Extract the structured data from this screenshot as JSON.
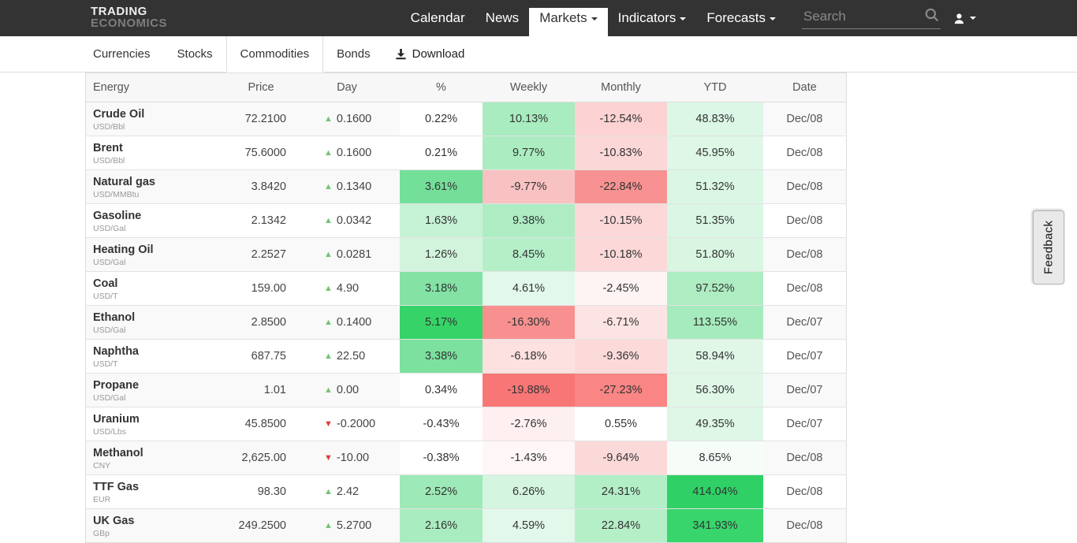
{
  "nav": {
    "brand_line1": "TRADING",
    "brand_line2": "ECONOMICS",
    "items": [
      {
        "label": "Calendar",
        "caret": false,
        "active": false
      },
      {
        "label": "News",
        "caret": false,
        "active": false
      },
      {
        "label": "Markets",
        "caret": true,
        "active": true
      },
      {
        "label": "Indicators",
        "caret": true,
        "active": false
      },
      {
        "label": "Forecasts",
        "caret": true,
        "active": false
      }
    ],
    "search_placeholder": "Search"
  },
  "subnav": {
    "tabs": [
      {
        "label": "Currencies",
        "active": false
      },
      {
        "label": "Stocks",
        "active": false
      },
      {
        "label": "Commodities",
        "active": true
      },
      {
        "label": "Bonds",
        "active": false
      }
    ],
    "download_label": "Download"
  },
  "feedback_label": "Feedback",
  "colors": {
    "navbar_bg": "#333333",
    "up_triangle": "#72c472",
    "down_triangle": "#e03c3c",
    "heat_green_max": "#33d466",
    "heat_red_max": "#f87272"
  },
  "table": {
    "columns": [
      "Energy",
      "Price",
      "Day",
      "%",
      "Weekly",
      "Monthly",
      "YTD",
      "Date"
    ],
    "rows": [
      {
        "name": "Crude Oil",
        "unit": "USD/Bbl",
        "price": "72.2100",
        "day_dir": "up",
        "day_change": "0.1600",
        "pct": {
          "v": "0.22%",
          "bg": "#ffffff"
        },
        "weekly": {
          "v": "10.13%",
          "bg": "#a8ecbf"
        },
        "monthly": {
          "v": "-12.54%",
          "bg": "#fcd2d2"
        },
        "ytd": {
          "v": "48.83%",
          "bg": "#dcf7e6"
        },
        "date": "Dec/08"
      },
      {
        "name": "Brent",
        "unit": "USD/Bbl",
        "price": "75.6000",
        "day_dir": "up",
        "day_change": "0.1600",
        "pct": {
          "v": "0.21%",
          "bg": "#ffffff"
        },
        "weekly": {
          "v": "9.77%",
          "bg": "#abedc1"
        },
        "monthly": {
          "v": "-10.83%",
          "bg": "#fcd7d7"
        },
        "ytd": {
          "v": "45.95%",
          "bg": "#def7e7"
        },
        "date": "Dec/08"
      },
      {
        "name": "Natural gas",
        "unit": "USD/MMBtu",
        "price": "3.8420",
        "day_dir": "up",
        "day_change": "0.1340",
        "pct": {
          "v": "3.61%",
          "bg": "#74df99"
        },
        "weekly": {
          "v": "-9.77%",
          "bg": "#f9c2c2"
        },
        "monthly": {
          "v": "-22.84%",
          "bg": "#f89292"
        },
        "ytd": {
          "v": "51.32%",
          "bg": "#daf6e4"
        },
        "date": "Dec/08"
      },
      {
        "name": "Gasoline",
        "unit": "USD/Gal",
        "price": "2.1342",
        "day_dir": "up",
        "day_change": "0.0342",
        "pct": {
          "v": "1.63%",
          "bg": "#c6f2d5"
        },
        "weekly": {
          "v": "9.38%",
          "bg": "#aeedc3"
        },
        "monthly": {
          "v": "-10.15%",
          "bg": "#fcd8d8"
        },
        "ytd": {
          "v": "51.35%",
          "bg": "#daf6e4"
        },
        "date": "Dec/08"
      },
      {
        "name": "Heating Oil",
        "unit": "USD/Gal",
        "price": "2.2527",
        "day_dir": "up",
        "day_change": "0.0281",
        "pct": {
          "v": "1.26%",
          "bg": "#d2f4dd"
        },
        "weekly": {
          "v": "8.45%",
          "bg": "#b5efc8"
        },
        "monthly": {
          "v": "-10.18%",
          "bg": "#fcd8d8"
        },
        "ytd": {
          "v": "51.80%",
          "bg": "#d9f6e3"
        },
        "date": "Dec/08"
      },
      {
        "name": "Coal",
        "unit": "USD/T",
        "price": "159.00",
        "day_dir": "up",
        "day_change": "4.90",
        "pct": {
          "v": "3.18%",
          "bg": "#83e2a4"
        },
        "weekly": {
          "v": "4.61%",
          "bg": "#e2f8ea"
        },
        "monthly": {
          "v": "-2.45%",
          "bg": "#fef4f4"
        },
        "ytd": {
          "v": "97.52%",
          "bg": "#aeedc2"
        },
        "date": "Dec/08"
      },
      {
        "name": "Ethanol",
        "unit": "USD/Gal",
        "price": "2.8500",
        "day_dir": "up",
        "day_change": "0.1400",
        "pct": {
          "v": "5.17%",
          "bg": "#36d468"
        },
        "weekly": {
          "v": "-16.30%",
          "bg": "#f99090"
        },
        "monthly": {
          "v": "-6.71%",
          "bg": "#fde4e4"
        },
        "ytd": {
          "v": "113.55%",
          "bg": "#a6ebbd"
        },
        "date": "Dec/07"
      },
      {
        "name": "Naphtha",
        "unit": "USD/T",
        "price": "687.75",
        "day_dir": "up",
        "day_change": "22.50",
        "pct": {
          "v": "3.38%",
          "bg": "#7ce09e"
        },
        "weekly": {
          "v": "-6.18%",
          "bg": "#fde0e0"
        },
        "monthly": {
          "v": "-9.36%",
          "bg": "#fcdada"
        },
        "ytd": {
          "v": "58.94%",
          "bg": "#e0f7e8"
        },
        "date": "Dec/07"
      },
      {
        "name": "Propane",
        "unit": "USD/Gal",
        "price": "1.01",
        "day_dir": "up",
        "day_change": "0.00",
        "pct": {
          "v": "0.34%",
          "bg": "#ffffff"
        },
        "weekly": {
          "v": "-19.88%",
          "bg": "#f87676"
        },
        "monthly": {
          "v": "-27.23%",
          "bg": "#f98585"
        },
        "ytd": {
          "v": "56.30%",
          "bg": "#e0f7e8"
        },
        "date": "Dec/07"
      },
      {
        "name": "Uranium",
        "unit": "USD/Lbs",
        "price": "45.8500",
        "day_dir": "down",
        "day_change": "-0.2000",
        "pct": {
          "v": "-0.43%",
          "bg": "#ffffff"
        },
        "weekly": {
          "v": "-2.76%",
          "bg": "#fef0f0"
        },
        "monthly": {
          "v": "0.55%",
          "bg": "#ffffff"
        },
        "ytd": {
          "v": "49.35%",
          "bg": "#def7e7"
        },
        "date": "Dec/07"
      },
      {
        "name": "Methanol",
        "unit": "CNY",
        "price": "2,625.00",
        "day_dir": "down",
        "day_change": "-10.00",
        "pct": {
          "v": "-0.38%",
          "bg": "#ffffff"
        },
        "weekly": {
          "v": "-1.43%",
          "bg": "#fff7f7"
        },
        "monthly": {
          "v": "-9.64%",
          "bg": "#fcd9d9"
        },
        "ytd": {
          "v": "8.65%",
          "bg": "#f6fdf9"
        },
        "date": "Dec/08"
      },
      {
        "name": "TTF Gas",
        "unit": "EUR",
        "price": "98.30",
        "day_dir": "up",
        "day_change": "2.42",
        "pct": {
          "v": "2.52%",
          "bg": "#9de9b7"
        },
        "weekly": {
          "v": "6.26%",
          "bg": "#d4f5df"
        },
        "monthly": {
          "v": "24.31%",
          "bg": "#b2eec6"
        },
        "ytd": {
          "v": "414.04%",
          "bg": "#2fd166"
        },
        "date": "Dec/08"
      },
      {
        "name": "UK Gas",
        "unit": "GBp",
        "price": "249.2500",
        "day_dir": "up",
        "day_change": "5.2700",
        "pct": {
          "v": "2.16%",
          "bg": "#a9ecbf"
        },
        "weekly": {
          "v": "4.59%",
          "bg": "#e2f8ea"
        },
        "monthly": {
          "v": "22.84%",
          "bg": "#b5efc8"
        },
        "ytd": {
          "v": "341.93%",
          "bg": "#38d56c"
        },
        "date": "Dec/08"
      }
    ]
  }
}
